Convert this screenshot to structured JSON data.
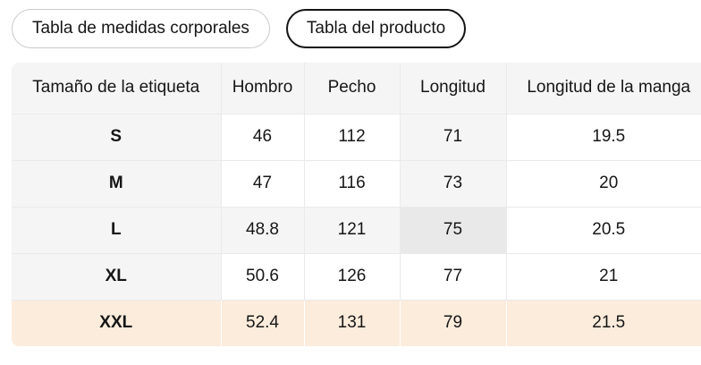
{
  "tabs": [
    {
      "label": "Tabla de medidas corporales",
      "selected": false
    },
    {
      "label": "Tabla del producto",
      "selected": true
    }
  ],
  "table": {
    "columns": [
      "Tamaño de la etiqueta",
      "Hombro",
      "Pecho",
      "Longitud",
      "Longitud de la manga"
    ],
    "rows": [
      {
        "label": "S",
        "values": [
          "46",
          "112",
          "71",
          "19.5"
        ],
        "cell_bgs": [
          "muted",
          "plain",
          "plain",
          "muted",
          "plain"
        ]
      },
      {
        "label": "M",
        "values": [
          "47",
          "116",
          "73",
          "20"
        ],
        "cell_bgs": [
          "muted",
          "plain",
          "plain",
          "muted",
          "plain"
        ]
      },
      {
        "label": "L",
        "values": [
          "48.8",
          "121",
          "75",
          "20.5"
        ],
        "cell_bgs": [
          "muted",
          "muted",
          "muted",
          "strong",
          "plain"
        ]
      },
      {
        "label": "XL",
        "values": [
          "50.6",
          "126",
          "77",
          "21"
        ],
        "cell_bgs": [
          "muted",
          "plain",
          "plain",
          "plain",
          "plain"
        ]
      },
      {
        "label": "XXL",
        "values": [
          "52.4",
          "131",
          "79",
          "21.5"
        ],
        "cell_bgs": [
          "peach",
          "peach",
          "peach",
          "peach",
          "peach"
        ]
      }
    ],
    "highlight": {
      "selected_row": "XXL",
      "crosshair_row": "L",
      "crosshair_column": "Longitud"
    }
  },
  "colors": {
    "muted_bg": "#f5f5f6",
    "intersection_bg": "#e9e9e9",
    "selected_row_bg": "#fcecdc",
    "divider": "#eaeaea",
    "text": "#161616",
    "tab_border": "#c9c9c9",
    "tab_selected_border": "#141414"
  }
}
